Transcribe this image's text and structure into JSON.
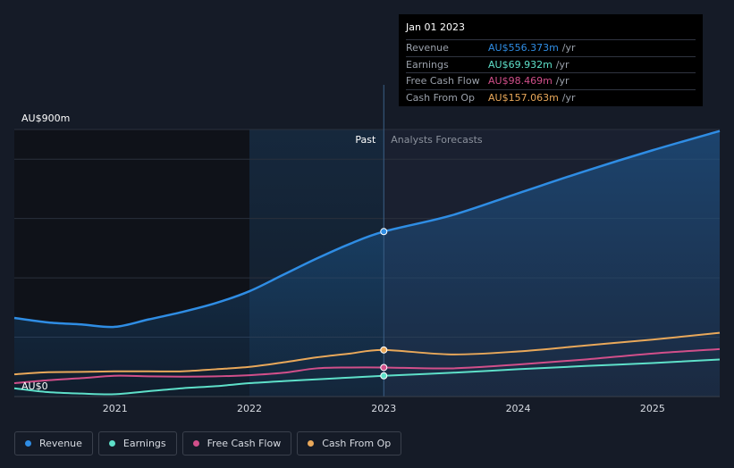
{
  "chart_data": {
    "type": "line",
    "ylabel_top": "AU$900m",
    "ylabel_bottom": "AU$0",
    "ylim": [
      0,
      900
    ],
    "xlim": [
      2020.25,
      2025.5
    ],
    "x_ticks": [
      {
        "label": "2021",
        "value": 2021
      },
      {
        "label": "2022",
        "value": 2022
      },
      {
        "label": "2023",
        "value": 2023
      },
      {
        "label": "2024",
        "value": 2024
      },
      {
        "label": "2025",
        "value": 2025
      }
    ],
    "past_label": "Past",
    "forecast_label": "Analysts Forecasts",
    "past_start": 2022.0,
    "divider": 2023.0,
    "series": [
      {
        "name": "Revenue",
        "color": "#2f8de4",
        "x": [
          2020.25,
          2020.5,
          2020.75,
          2021.0,
          2021.25,
          2021.5,
          2021.75,
          2022.0,
          2022.25,
          2022.5,
          2022.75,
          2023.0,
          2023.5,
          2024.0,
          2024.5,
          2025.0,
          2025.5
        ],
        "y": [
          265,
          250,
          243,
          235,
          260,
          285,
          315,
          355,
          410,
          465,
          515,
          556,
          610,
          685,
          760,
          830,
          895
        ]
      },
      {
        "name": "Earnings",
        "color": "#5ee0c9",
        "x": [
          2020.25,
          2020.5,
          2020.75,
          2021.0,
          2021.25,
          2021.5,
          2021.75,
          2022.0,
          2022.25,
          2022.5,
          2022.75,
          2023.0,
          2023.5,
          2024.0,
          2024.5,
          2025.0,
          2025.5
        ],
        "y": [
          28,
          15,
          10,
          8,
          18,
          28,
          35,
          45,
          52,
          58,
          64,
          70,
          80,
          92,
          103,
          113,
          125
        ]
      },
      {
        "name": "Free Cash Flow",
        "color": "#d14f8a",
        "x": [
          2020.25,
          2020.5,
          2020.75,
          2021.0,
          2021.25,
          2021.5,
          2021.75,
          2022.0,
          2022.25,
          2022.5,
          2022.75,
          2023.0,
          2023.5,
          2024.0,
          2024.5,
          2025.0,
          2025.5
        ],
        "y": [
          45,
          55,
          62,
          70,
          68,
          67,
          68,
          72,
          80,
          95,
          98,
          98,
          95,
          108,
          125,
          145,
          160
        ]
      },
      {
        "name": "Cash From Op",
        "color": "#e9a85a",
        "x": [
          2020.25,
          2020.5,
          2020.75,
          2021.0,
          2021.25,
          2021.5,
          2021.75,
          2022.0,
          2022.25,
          2022.5,
          2022.75,
          2023.0,
          2023.5,
          2024.0,
          2024.5,
          2025.0,
          2025.5
        ],
        "y": [
          75,
          82,
          83,
          85,
          85,
          85,
          92,
          100,
          115,
          132,
          145,
          157,
          142,
          152,
          172,
          192,
          215
        ]
      }
    ],
    "tooltip": {
      "date": "Jan 01 2023",
      "unit": "/yr",
      "rows": [
        {
          "label": "Revenue",
          "value": "AU$556.373m",
          "color": "#2f8de4"
        },
        {
          "label": "Earnings",
          "value": "AU$69.932m",
          "color": "#5ee0c9"
        },
        {
          "label": "Free Cash Flow",
          "value": "AU$98.469m",
          "color": "#d14f8a"
        },
        {
          "label": "Cash From Op",
          "value": "AU$157.063m",
          "color": "#e9a85a"
        }
      ]
    }
  }
}
